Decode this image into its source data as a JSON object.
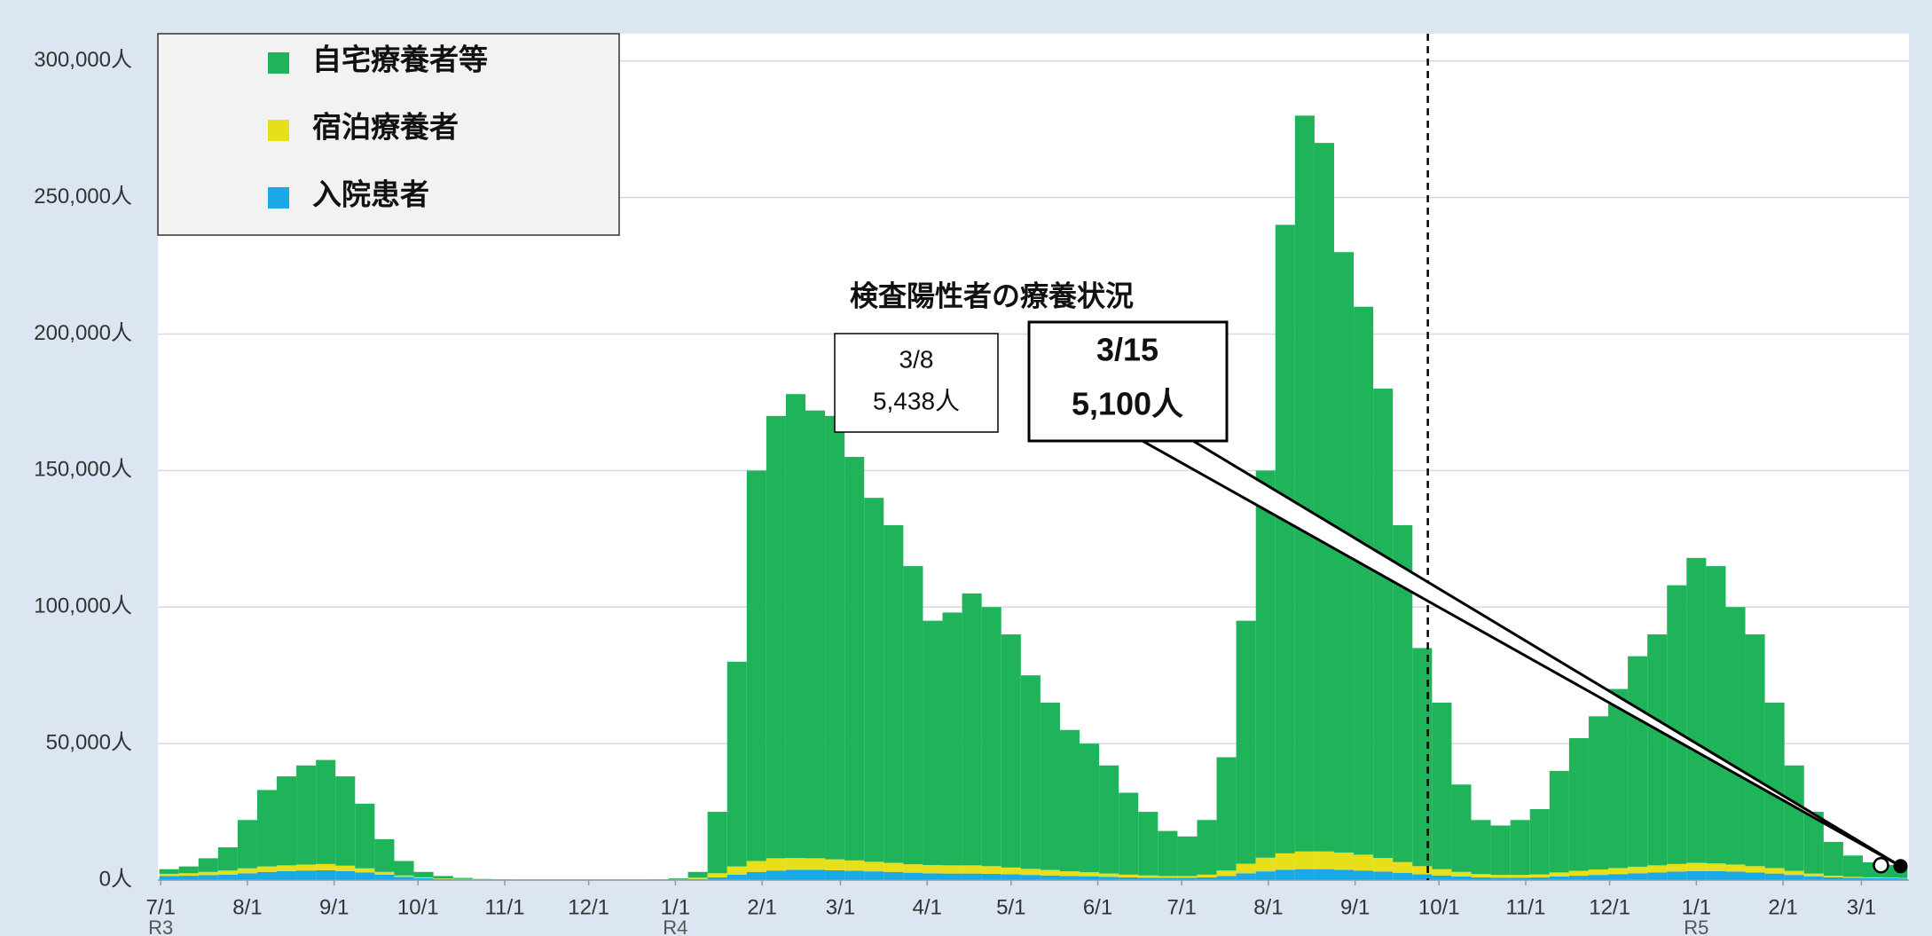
{
  "chart_data": {
    "type": "stacked_bar",
    "title": "検査陽性者の療養状況",
    "x": [
      0,
      7,
      14,
      21,
      28,
      35,
      42,
      49,
      56,
      63,
      70,
      77,
      84,
      91,
      98,
      105,
      112,
      119,
      126,
      133,
      140,
      147,
      154,
      161,
      168,
      175,
      182,
      189,
      196,
      203,
      210,
      217,
      224,
      231,
      238,
      245,
      252,
      259,
      266,
      273,
      280,
      287,
      294,
      301,
      308,
      315,
      322,
      329,
      336,
      343,
      350,
      357,
      364,
      371,
      378,
      385,
      392,
      399,
      406,
      413,
      420,
      427,
      434,
      441,
      448,
      455,
      462,
      469,
      476,
      483,
      490,
      497,
      504,
      511,
      518,
      525,
      532,
      539,
      546,
      553,
      560,
      567,
      574,
      581,
      588,
      595,
      602,
      609,
      616,
      622
    ],
    "series": [
      {
        "name": "自宅療養者等",
        "color": "#1fb45a",
        "values": [
          1700,
          2500,
          5000,
          8500,
          17700,
          28000,
          32600,
          36300,
          38100,
          32700,
          23700,
          12000,
          5300,
          2000,
          900,
          400,
          150,
          100,
          50,
          50,
          50,
          50,
          50,
          50,
          50,
          100,
          350,
          2100,
          22500,
          75000,
          143000,
          162000,
          169900,
          164000,
          162400,
          147800,
          133300,
          123700,
          109200,
          89500,
          92600,
          99600,
          94900,
          85400,
          70900,
          61300,
          51800,
          47100,
          39600,
          30000,
          23300,
          16500,
          14500,
          20000,
          41500,
          89000,
          141800,
          230200,
          269500,
          259500,
          219900,
          200700,
          171900,
          123400,
          79900,
          61000,
          32000,
          19800,
          18100,
          20100,
          23900,
          37200,
          48600,
          56100,
          65600,
          77100,
          84600,
          102100,
          111700,
          108900,
          94300,
          84900,
          60600,
          38600,
          22600,
          12400,
          7800,
          5500,
          4700,
          4300
        ]
      },
      {
        "name": "宿泊療養者",
        "color": "#e6df1a",
        "values": [
          800,
          900,
          1200,
          1500,
          1800,
          2000,
          2100,
          2200,
          2300,
          2000,
          1500,
          1000,
          500,
          300,
          200,
          150,
          100,
          100,
          100,
          100,
          100,
          100,
          100,
          100,
          100,
          100,
          100,
          500,
          1500,
          3000,
          4000,
          4500,
          4300,
          4200,
          4000,
          3800,
          3500,
          3300,
          3100,
          3000,
          3000,
          3000,
          2800,
          2500,
          2200,
          2000,
          1700,
          1500,
          1200,
          1000,
          800,
          700,
          700,
          1000,
          2000,
          3500,
          5000,
          6000,
          6500,
          6500,
          6300,
          5800,
          5000,
          4000,
          3000,
          2300,
          1700,
          1200,
          1000,
          1000,
          1100,
          1500,
          1800,
          2000,
          2200,
          2400,
          2600,
          2800,
          3000,
          2800,
          2600,
          2300,
          2000,
          1500,
          1000,
          600,
          400,
          300,
          250,
          200
        ]
      },
      {
        "name": "入院患者",
        "color": "#1aa8e6",
        "values": [
          1500,
          1600,
          1800,
          2000,
          2500,
          3000,
          3300,
          3500,
          3600,
          3300,
          2800,
          2000,
          1200,
          700,
          400,
          250,
          150,
          100,
          100,
          100,
          100,
          100,
          100,
          100,
          100,
          100,
          150,
          400,
          1000,
          2000,
          3000,
          3500,
          3800,
          3800,
          3600,
          3400,
          3200,
          3000,
          2700,
          2500,
          2400,
          2400,
          2300,
          2100,
          1900,
          1700,
          1500,
          1400,
          1200,
          1000,
          900,
          800,
          800,
          1000,
          1500,
          2500,
          3200,
          3800,
          4000,
          4000,
          3800,
          3500,
          3100,
          2600,
          2100,
          1700,
          1300,
          1000,
          900,
          900,
          1000,
          1300,
          1600,
          1900,
          2200,
          2500,
          2800,
          3100,
          3300,
          3300,
          3100,
          2800,
          2400,
          1900,
          1400,
          1000,
          800,
          700,
          650,
          600
        ]
      }
    ],
    "xlim": [
      -1,
      625
    ],
    "xticks": [
      {
        "value": 0,
        "label": "7/1"
      },
      {
        "value": 31,
        "label": "8/1"
      },
      {
        "value": 62,
        "label": "9/1"
      },
      {
        "value": 92,
        "label": "10/1"
      },
      {
        "value": 123,
        "label": "11/1"
      },
      {
        "value": 153,
        "label": "12/1"
      },
      {
        "value": 184,
        "label": "1/1"
      },
      {
        "value": 215,
        "label": "2/1"
      },
      {
        "value": 243,
        "label": "3/1"
      },
      {
        "value": 274,
        "label": "4/1"
      },
      {
        "value": 304,
        "label": "5/1"
      },
      {
        "value": 335,
        "label": "6/1"
      },
      {
        "value": 365,
        "label": "7/1"
      },
      {
        "value": 396,
        "label": "8/1"
      },
      {
        "value": 427,
        "label": "9/1"
      },
      {
        "value": 457,
        "label": "10/1"
      },
      {
        "value": 488,
        "label": "11/1"
      },
      {
        "value": 518,
        "label": "12/1"
      },
      {
        "value": 549,
        "label": "1/1"
      },
      {
        "value": 580,
        "label": "2/1"
      },
      {
        "value": 608,
        "label": "3/1"
      }
    ],
    "xgroups": [
      {
        "value": 0,
        "label": "R3"
      },
      {
        "value": 184,
        "label": "R4"
      },
      {
        "value": 549,
        "label": "R5"
      }
    ],
    "ylim": [
      0,
      310000
    ],
    "yticks": [
      {
        "value": 0,
        "label": "0人"
      },
      {
        "value": 50000,
        "label": "50,000人"
      },
      {
        "value": 100000,
        "label": "100,000人"
      },
      {
        "value": 150000,
        "label": "150,000人"
      },
      {
        "value": 200000,
        "label": "200,000人"
      },
      {
        "value": 250000,
        "label": "250,000人"
      },
      {
        "value": 300000,
        "label": "300,000人"
      }
    ],
    "grid": true,
    "legend": "top-left",
    "vline_x": 453,
    "callouts": [
      {
        "x": 615,
        "y": 5438,
        "lines": [
          "3/8",
          "5,438人"
        ]
      },
      {
        "x": 622,
        "y": 5100,
        "lines": [
          "3/15",
          "5,100人"
        ]
      }
    ]
  }
}
